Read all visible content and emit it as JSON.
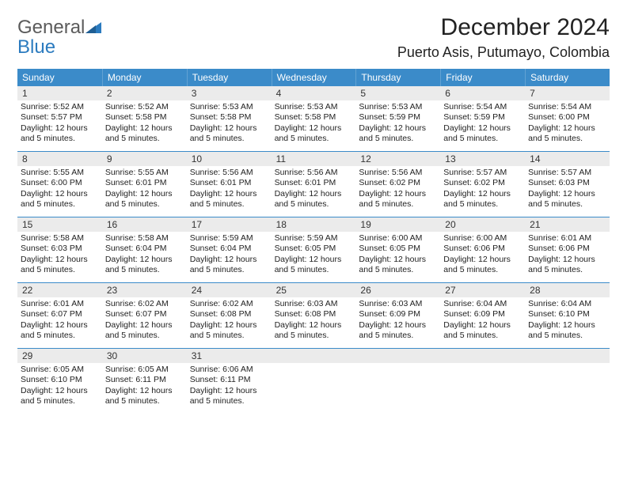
{
  "brand": {
    "line1": "General",
    "line2": "Blue"
  },
  "title": "December 2024",
  "location": "Puerto Asis, Putumayo, Colombia",
  "colors": {
    "header_bg": "#3b8bc9",
    "header_text": "#ffffff",
    "daynum_bg": "#ebebeb",
    "rule": "#3b8bc9",
    "text": "#222222",
    "logo_gray": "#5b5b5b",
    "logo_blue": "#2b7bbf"
  },
  "dow": [
    "Sunday",
    "Monday",
    "Tuesday",
    "Wednesday",
    "Thursday",
    "Friday",
    "Saturday"
  ],
  "days": [
    {
      "n": 1,
      "sunrise": "5:52 AM",
      "sunset": "5:57 PM",
      "daylight": "12 hours and 5 minutes."
    },
    {
      "n": 2,
      "sunrise": "5:52 AM",
      "sunset": "5:58 PM",
      "daylight": "12 hours and 5 minutes."
    },
    {
      "n": 3,
      "sunrise": "5:53 AM",
      "sunset": "5:58 PM",
      "daylight": "12 hours and 5 minutes."
    },
    {
      "n": 4,
      "sunrise": "5:53 AM",
      "sunset": "5:58 PM",
      "daylight": "12 hours and 5 minutes."
    },
    {
      "n": 5,
      "sunrise": "5:53 AM",
      "sunset": "5:59 PM",
      "daylight": "12 hours and 5 minutes."
    },
    {
      "n": 6,
      "sunrise": "5:54 AM",
      "sunset": "5:59 PM",
      "daylight": "12 hours and 5 minutes."
    },
    {
      "n": 7,
      "sunrise": "5:54 AM",
      "sunset": "6:00 PM",
      "daylight": "12 hours and 5 minutes."
    },
    {
      "n": 8,
      "sunrise": "5:55 AM",
      "sunset": "6:00 PM",
      "daylight": "12 hours and 5 minutes."
    },
    {
      "n": 9,
      "sunrise": "5:55 AM",
      "sunset": "6:01 PM",
      "daylight": "12 hours and 5 minutes."
    },
    {
      "n": 10,
      "sunrise": "5:56 AM",
      "sunset": "6:01 PM",
      "daylight": "12 hours and 5 minutes."
    },
    {
      "n": 11,
      "sunrise": "5:56 AM",
      "sunset": "6:01 PM",
      "daylight": "12 hours and 5 minutes."
    },
    {
      "n": 12,
      "sunrise": "5:56 AM",
      "sunset": "6:02 PM",
      "daylight": "12 hours and 5 minutes."
    },
    {
      "n": 13,
      "sunrise": "5:57 AM",
      "sunset": "6:02 PM",
      "daylight": "12 hours and 5 minutes."
    },
    {
      "n": 14,
      "sunrise": "5:57 AM",
      "sunset": "6:03 PM",
      "daylight": "12 hours and 5 minutes."
    },
    {
      "n": 15,
      "sunrise": "5:58 AM",
      "sunset": "6:03 PM",
      "daylight": "12 hours and 5 minutes."
    },
    {
      "n": 16,
      "sunrise": "5:58 AM",
      "sunset": "6:04 PM",
      "daylight": "12 hours and 5 minutes."
    },
    {
      "n": 17,
      "sunrise": "5:59 AM",
      "sunset": "6:04 PM",
      "daylight": "12 hours and 5 minutes."
    },
    {
      "n": 18,
      "sunrise": "5:59 AM",
      "sunset": "6:05 PM",
      "daylight": "12 hours and 5 minutes."
    },
    {
      "n": 19,
      "sunrise": "6:00 AM",
      "sunset": "6:05 PM",
      "daylight": "12 hours and 5 minutes."
    },
    {
      "n": 20,
      "sunrise": "6:00 AM",
      "sunset": "6:06 PM",
      "daylight": "12 hours and 5 minutes."
    },
    {
      "n": 21,
      "sunrise": "6:01 AM",
      "sunset": "6:06 PM",
      "daylight": "12 hours and 5 minutes."
    },
    {
      "n": 22,
      "sunrise": "6:01 AM",
      "sunset": "6:07 PM",
      "daylight": "12 hours and 5 minutes."
    },
    {
      "n": 23,
      "sunrise": "6:02 AM",
      "sunset": "6:07 PM",
      "daylight": "12 hours and 5 minutes."
    },
    {
      "n": 24,
      "sunrise": "6:02 AM",
      "sunset": "6:08 PM",
      "daylight": "12 hours and 5 minutes."
    },
    {
      "n": 25,
      "sunrise": "6:03 AM",
      "sunset": "6:08 PM",
      "daylight": "12 hours and 5 minutes."
    },
    {
      "n": 26,
      "sunrise": "6:03 AM",
      "sunset": "6:09 PM",
      "daylight": "12 hours and 5 minutes."
    },
    {
      "n": 27,
      "sunrise": "6:04 AM",
      "sunset": "6:09 PM",
      "daylight": "12 hours and 5 minutes."
    },
    {
      "n": 28,
      "sunrise": "6:04 AM",
      "sunset": "6:10 PM",
      "daylight": "12 hours and 5 minutes."
    },
    {
      "n": 29,
      "sunrise": "6:05 AM",
      "sunset": "6:10 PM",
      "daylight": "12 hours and 5 minutes."
    },
    {
      "n": 30,
      "sunrise": "6:05 AM",
      "sunset": "6:11 PM",
      "daylight": "12 hours and 5 minutes."
    },
    {
      "n": 31,
      "sunrise": "6:06 AM",
      "sunset": "6:11 PM",
      "daylight": "12 hours and 5 minutes."
    }
  ],
  "labels": {
    "sunrise": "Sunrise:",
    "sunset": "Sunset:",
    "daylight": "Daylight:"
  },
  "layout": {
    "cols": 7,
    "start_dow": 0,
    "total_cells": 35
  }
}
